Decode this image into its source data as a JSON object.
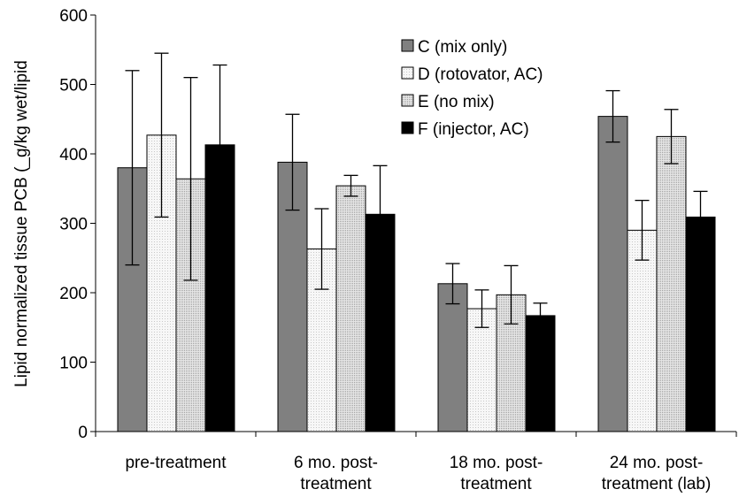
{
  "chart_data": {
    "type": "bar",
    "ylabel": "Lipid normalized tissue PCB (_g/kg wet/lipid",
    "xlabel": "",
    "title": "",
    "ylim": [
      0,
      600
    ],
    "yticks": [
      0,
      100,
      200,
      300,
      400,
      500,
      600
    ],
    "grid": false,
    "legend_position": "top-right",
    "categories": [
      [
        "pre-treatment"
      ],
      [
        "6 mo. post-",
        "treatment"
      ],
      [
        "18 mo. post-",
        "treatment"
      ],
      [
        "24 mo. post-",
        "treatment (lab)"
      ]
    ],
    "series": [
      {
        "name": "C (mix only)",
        "color": "#808080",
        "pattern": "solid",
        "values": [
          380,
          388,
          213,
          454
        ],
        "errors": [
          140,
          69,
          29,
          37
        ]
      },
      {
        "name": "D (rotovator, AC)",
        "color": "#f0f0f0",
        "pattern": "dots-light",
        "values": [
          427,
          263,
          177,
          290
        ],
        "errors": [
          118,
          58,
          27,
          43
        ]
      },
      {
        "name": "E (no mix)",
        "color": "#d4d4d4",
        "pattern": "dots-dense",
        "values": [
          364,
          354,
          197,
          425
        ],
        "errors": [
          146,
          15,
          42,
          39
        ]
      },
      {
        "name": "F (injector, AC)",
        "color": "#000000",
        "pattern": "solid",
        "values": [
          413,
          313,
          167,
          309
        ],
        "errors": [
          115,
          70,
          18,
          37
        ]
      }
    ]
  }
}
